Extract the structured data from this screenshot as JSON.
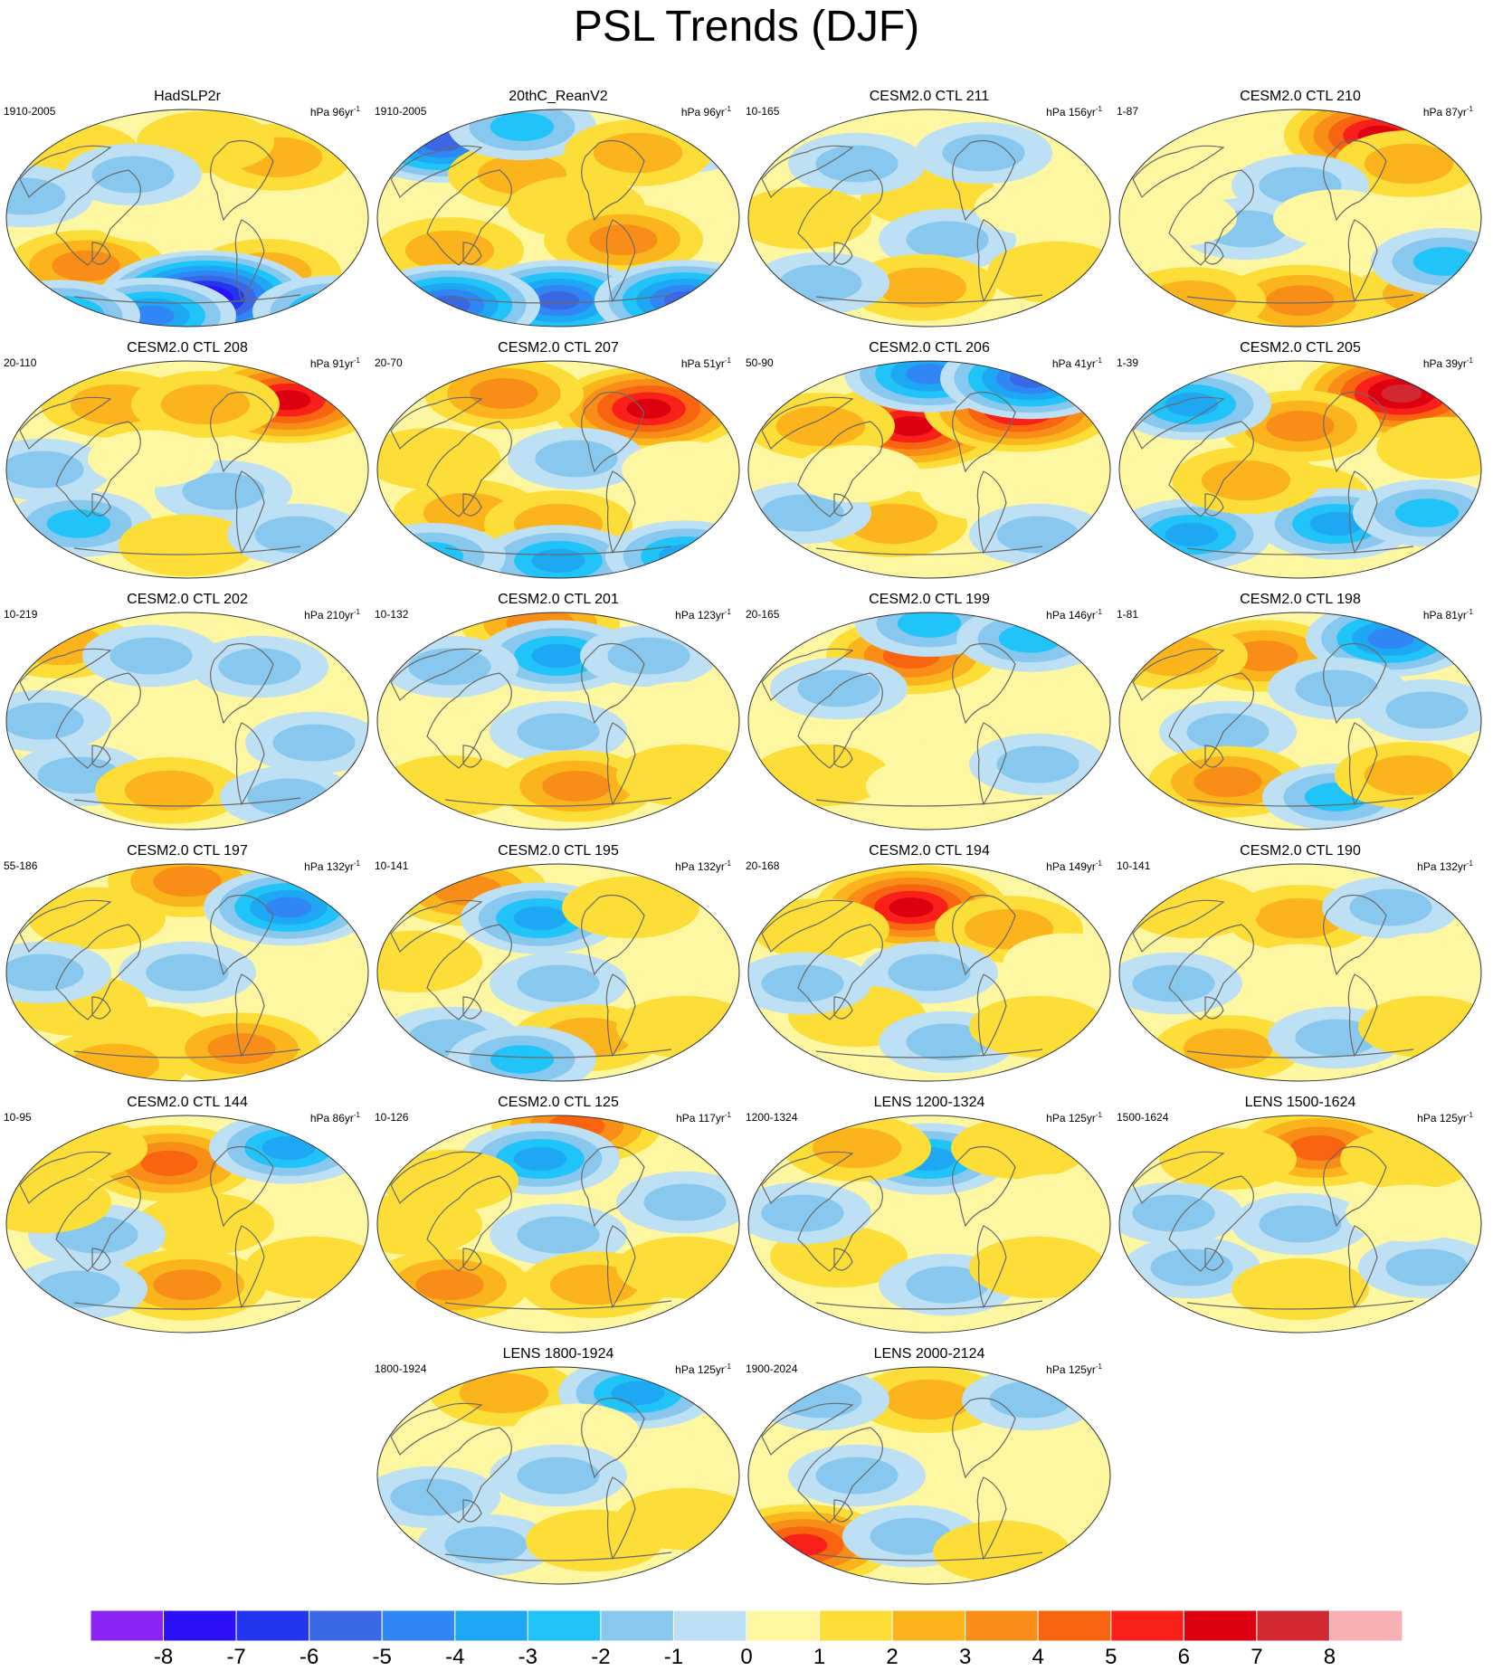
{
  "title": "PSL Trends (DJF)",
  "units": "hPa",
  "panels": [
    {
      "title": "HadSLP2r",
      "range": "1910-2005",
      "years": "96",
      "pattern": [
        [
          0.18,
          0.2,
          1
        ],
        [
          0.75,
          0.22,
          2
        ],
        [
          0.55,
          0.15,
          1
        ],
        [
          0.22,
          0.72,
          3
        ],
        [
          0.72,
          0.75,
          2
        ],
        [
          0.55,
          0.87,
          -8
        ],
        [
          0.4,
          0.95,
          -4
        ],
        [
          0.15,
          0.95,
          -3
        ],
        [
          0.9,
          0.93,
          -3
        ],
        [
          0.4,
          0.48,
          0
        ],
        [
          0.35,
          0.3,
          -1
        ],
        [
          0.05,
          0.4,
          -1
        ]
      ]
    },
    {
      "title": "20thC_ReanV2",
      "range": "1910-2005",
      "years": "96",
      "pattern": [
        [
          0.18,
          0.15,
          -5
        ],
        [
          0.4,
          0.3,
          2
        ],
        [
          0.55,
          0.45,
          1
        ],
        [
          0.2,
          0.65,
          2
        ],
        [
          0.68,
          0.6,
          3
        ],
        [
          0.5,
          0.88,
          -5
        ],
        [
          0.2,
          0.9,
          -5
        ],
        [
          0.85,
          0.88,
          -5
        ],
        [
          0.4,
          0.08,
          -2
        ],
        [
          0.85,
          0.15,
          -1
        ],
        [
          0.72,
          0.2,
          2
        ]
      ]
    },
    {
      "title": "CESM2.0 CTL 211",
      "range": "10-165",
      "years": "156",
      "pattern": [
        [
          0.5,
          0.4,
          1
        ],
        [
          0.3,
          0.25,
          -1
        ],
        [
          0.65,
          0.2,
          -1
        ],
        [
          0.55,
          0.6,
          -1
        ],
        [
          0.48,
          0.82,
          2
        ],
        [
          0.2,
          0.8,
          -1
        ],
        [
          0.85,
          0.75,
          1
        ],
        [
          0.15,
          0.5,
          1
        ],
        [
          0.8,
          0.45,
          0
        ]
      ]
    },
    {
      "title": "CESM2.0 CTL 210",
      "range": "1-87",
      "years": "87",
      "pattern": [
        [
          0.72,
          0.12,
          6
        ],
        [
          0.8,
          0.25,
          2
        ],
        [
          0.5,
          0.35,
          -1
        ],
        [
          0.35,
          0.55,
          -1
        ],
        [
          0.5,
          0.88,
          3
        ],
        [
          0.2,
          0.88,
          2
        ],
        [
          0.85,
          0.85,
          2
        ],
        [
          0.9,
          0.7,
          -2
        ],
        [
          0.15,
          0.5,
          0
        ],
        [
          0.6,
          0.5,
          0
        ]
      ]
    },
    {
      "title": "CESM2.0 CTL 208",
      "range": "20-110",
      "years": "91",
      "pattern": [
        [
          0.78,
          0.18,
          6
        ],
        [
          0.3,
          0.2,
          2
        ],
        [
          0.55,
          0.2,
          2
        ],
        [
          0.6,
          0.6,
          -1
        ],
        [
          0.2,
          0.75,
          -2
        ],
        [
          0.5,
          0.85,
          1
        ],
        [
          0.8,
          0.8,
          -1
        ],
        [
          0.1,
          0.5,
          -1
        ],
        [
          0.4,
          0.45,
          0
        ]
      ]
    },
    {
      "title": "CESM2.0 CTL 207",
      "range": "20-70",
      "years": "51",
      "pattern": [
        [
          0.75,
          0.22,
          6
        ],
        [
          0.35,
          0.15,
          3
        ],
        [
          0.55,
          0.45,
          -1
        ],
        [
          0.25,
          0.7,
          2
        ],
        [
          0.5,
          0.75,
          2
        ],
        [
          0.5,
          0.92,
          -3
        ],
        [
          0.85,
          0.9,
          -3
        ],
        [
          0.15,
          0.9,
          -2
        ],
        [
          0.15,
          0.45,
          1
        ],
        [
          0.85,
          0.5,
          0
        ]
      ]
    },
    {
      "title": "CESM2.0 CTL 206",
      "range": "50-90",
      "years": "41",
      "pattern": [
        [
          0.45,
          0.3,
          6
        ],
        [
          0.75,
          0.22,
          6
        ],
        [
          0.5,
          0.06,
          -4
        ],
        [
          0.78,
          0.08,
          -5
        ],
        [
          0.2,
          0.3,
          2
        ],
        [
          0.4,
          0.75,
          2
        ],
        [
          0.15,
          0.7,
          -1
        ],
        [
          0.65,
          0.6,
          0
        ],
        [
          0.8,
          0.8,
          -1
        ],
        [
          0.3,
          0.52,
          0
        ]
      ]
    },
    {
      "title": "CESM2.0 CTL 205",
      "range": "1-39",
      "years": "39",
      "pattern": [
        [
          0.78,
          0.15,
          7
        ],
        [
          0.5,
          0.3,
          3
        ],
        [
          0.2,
          0.2,
          -3
        ],
        [
          0.5,
          0.62,
          1
        ],
        [
          0.2,
          0.8,
          -3
        ],
        [
          0.6,
          0.75,
          -3
        ],
        [
          0.85,
          0.7,
          -2
        ],
        [
          0.35,
          0.55,
          2
        ],
        [
          0.9,
          0.4,
          1
        ]
      ]
    },
    {
      "title": "CESM2.0 CTL 202",
      "range": "10-219",
      "years": "210",
      "pattern": [
        [
          0.15,
          0.15,
          2
        ],
        [
          0.4,
          0.2,
          -1
        ],
        [
          0.7,
          0.25,
          -1
        ],
        [
          0.5,
          0.55,
          0
        ],
        [
          0.2,
          0.75,
          -1
        ],
        [
          0.45,
          0.82,
          2
        ],
        [
          0.78,
          0.85,
          -1
        ],
        [
          0.85,
          0.6,
          -1
        ],
        [
          0.1,
          0.5,
          -1
        ]
      ]
    },
    {
      "title": "CESM2.0 CTL 201",
      "range": "10-132",
      "years": "123",
      "pattern": [
        [
          0.45,
          0.05,
          3
        ],
        [
          0.5,
          0.2,
          -3
        ],
        [
          0.2,
          0.25,
          -1
        ],
        [
          0.75,
          0.2,
          -1
        ],
        [
          0.5,
          0.55,
          -1
        ],
        [
          0.55,
          0.8,
          3
        ],
        [
          0.2,
          0.8,
          1
        ],
        [
          0.85,
          0.75,
          1
        ],
        [
          0.85,
          0.45,
          0
        ]
      ]
    },
    {
      "title": "CESM2.0 CTL 199",
      "range": "20-165",
      "years": "146",
      "pattern": [
        [
          0.45,
          0.2,
          4
        ],
        [
          0.5,
          0.05,
          -2
        ],
        [
          0.78,
          0.12,
          -2
        ],
        [
          0.25,
          0.35,
          -1
        ],
        [
          0.6,
          0.5,
          0
        ],
        [
          0.2,
          0.75,
          1
        ],
        [
          0.5,
          0.8,
          0
        ],
        [
          0.8,
          0.7,
          -1
        ],
        [
          0.9,
          0.4,
          0
        ]
      ]
    },
    {
      "title": "CESM2.0 CTL 198",
      "range": "1-81",
      "years": "81",
      "pattern": [
        [
          0.4,
          0.2,
          3
        ],
        [
          0.75,
          0.12,
          -4
        ],
        [
          0.15,
          0.2,
          2
        ],
        [
          0.6,
          0.35,
          -1
        ],
        [
          0.3,
          0.55,
          -1
        ],
        [
          0.3,
          0.78,
          3
        ],
        [
          0.6,
          0.85,
          -2
        ],
        [
          0.8,
          0.75,
          2
        ],
        [
          0.85,
          0.45,
          -1
        ]
      ]
    },
    {
      "title": "CESM2.0 CTL 197",
      "range": "55-186",
      "years": "132",
      "pattern": [
        [
          0.5,
          0.08,
          3
        ],
        [
          0.78,
          0.2,
          -4
        ],
        [
          0.25,
          0.25,
          1
        ],
        [
          0.5,
          0.5,
          -1
        ],
        [
          0.2,
          0.65,
          1
        ],
        [
          0.4,
          0.8,
          1
        ],
        [
          0.65,
          0.85,
          3
        ],
        [
          0.3,
          0.92,
          2
        ],
        [
          0.1,
          0.5,
          -1
        ]
      ]
    },
    {
      "title": "CESM2.0 CTL 195",
      "range": "10-141",
      "years": "132",
      "pattern": [
        [
          0.25,
          0.12,
          3
        ],
        [
          0.45,
          0.25,
          -3
        ],
        [
          0.7,
          0.2,
          1
        ],
        [
          0.5,
          0.55,
          -1
        ],
        [
          0.2,
          0.8,
          -1
        ],
        [
          0.58,
          0.8,
          2
        ],
        [
          0.85,
          0.75,
          1
        ],
        [
          0.1,
          0.45,
          1
        ],
        [
          0.4,
          0.9,
          -2
        ]
      ]
    },
    {
      "title": "CESM2.0 CTL 194",
      "range": "20-168",
      "years": "149",
      "pattern": [
        [
          0.45,
          0.2,
          6
        ],
        [
          0.72,
          0.3,
          2
        ],
        [
          0.2,
          0.3,
          1
        ],
        [
          0.5,
          0.5,
          -1
        ],
        [
          0.3,
          0.7,
          1
        ],
        [
          0.55,
          0.82,
          -1
        ],
        [
          0.8,
          0.75,
          1
        ],
        [
          0.15,
          0.55,
          -1
        ],
        [
          0.88,
          0.45,
          0
        ]
      ]
    },
    {
      "title": "CESM2.0 CTL 190",
      "range": "10-141",
      "years": "132",
      "pattern": [
        [
          0.5,
          0.25,
          2
        ],
        [
          0.2,
          0.2,
          1
        ],
        [
          0.75,
          0.2,
          -1
        ],
        [
          0.5,
          0.5,
          0
        ],
        [
          0.3,
          0.85,
          2
        ],
        [
          0.6,
          0.8,
          -1
        ],
        [
          0.85,
          0.75,
          1
        ],
        [
          0.15,
          0.55,
          -1
        ],
        [
          0.85,
          0.45,
          0
        ]
      ]
    },
    {
      "title": "CESM2.0 CTL 144",
      "range": "10-95",
      "years": "86",
      "pattern": [
        [
          0.45,
          0.22,
          4
        ],
        [
          0.78,
          0.15,
          -3
        ],
        [
          0.2,
          0.15,
          1
        ],
        [
          0.55,
          0.5,
          1
        ],
        [
          0.25,
          0.55,
          -1
        ],
        [
          0.5,
          0.78,
          3
        ],
        [
          0.85,
          0.7,
          1
        ],
        [
          0.2,
          0.8,
          -1
        ],
        [
          0.1,
          0.4,
          1
        ]
      ]
    },
    {
      "title": "CESM2.0 CTL 125",
      "range": "10-126",
      "years": "117",
      "pattern": [
        [
          0.55,
          0.05,
          4
        ],
        [
          0.45,
          0.2,
          -3
        ],
        [
          0.2,
          0.3,
          1
        ],
        [
          0.5,
          0.55,
          -1
        ],
        [
          0.2,
          0.78,
          3
        ],
        [
          0.6,
          0.78,
          2
        ],
        [
          0.85,
          0.7,
          1
        ],
        [
          0.1,
          0.5,
          1
        ],
        [
          0.85,
          0.4,
          -1
        ]
      ]
    },
    {
      "title": "LENS 1200-1324",
      "range": "1200-1324",
      "years": "125",
      "pattern": [
        [
          0.5,
          0.2,
          -3
        ],
        [
          0.3,
          0.15,
          2
        ],
        [
          0.75,
          0.15,
          1
        ],
        [
          0.5,
          0.5,
          0
        ],
        [
          0.25,
          0.65,
          1
        ],
        [
          0.55,
          0.78,
          -1
        ],
        [
          0.8,
          0.7,
          1
        ],
        [
          0.15,
          0.45,
          -1
        ],
        [
          0.85,
          0.4,
          0
        ]
      ]
    },
    {
      "title": "LENS 1500-1624",
      "range": "1500-1624",
      "years": "125",
      "pattern": [
        [
          0.55,
          0.15,
          4
        ],
        [
          0.3,
          0.2,
          1
        ],
        [
          0.8,
          0.2,
          1
        ],
        [
          0.5,
          0.5,
          -1
        ],
        [
          0.2,
          0.7,
          -1
        ],
        [
          0.5,
          0.8,
          1
        ],
        [
          0.85,
          0.7,
          -1
        ],
        [
          0.15,
          0.45,
          -1
        ],
        [
          0.8,
          0.45,
          0
        ]
      ]
    },
    {
      "title": "LENS 1800-1924",
      "range": "1800-1924",
      "years": "125",
      "pattern": [
        [
          0.35,
          0.12,
          2
        ],
        [
          0.72,
          0.12,
          -3
        ],
        [
          0.55,
          0.3,
          0
        ],
        [
          0.5,
          0.5,
          -1
        ],
        [
          0.15,
          0.6,
          -1
        ],
        [
          0.3,
          0.82,
          -1
        ],
        [
          0.6,
          0.8,
          1
        ],
        [
          0.85,
          0.7,
          1
        ],
        [
          0.85,
          0.4,
          0
        ]
      ]
    },
    {
      "title": "LENS 2000-2124",
      "range": "1900-2024",
      "years": "125",
      "pattern": [
        [
          0.5,
          0.15,
          2
        ],
        [
          0.2,
          0.15,
          -1
        ],
        [
          0.78,
          0.15,
          -1
        ],
        [
          0.5,
          0.45,
          0
        ],
        [
          0.15,
          0.82,
          5
        ],
        [
          0.45,
          0.78,
          -1
        ],
        [
          0.7,
          0.85,
          1
        ],
        [
          0.85,
          0.6,
          0
        ],
        [
          0.3,
          0.5,
          -1
        ]
      ]
    }
  ],
  "colorbar": {
    "colors": [
      "#8b24f4",
      "#2b10f8",
      "#2236f0",
      "#3a68e4",
      "#2f86f4",
      "#1ea8f4",
      "#20c4f8",
      "#88c8ee",
      "#bee0f4",
      "#fdf7a2",
      "#fdde38",
      "#fbb41c",
      "#f88e18",
      "#f86410",
      "#f82018",
      "#dc0010",
      "#d22830",
      "#f8b0b4"
    ],
    "labels": [
      "-8",
      "-7",
      "-6",
      "-5",
      "-4",
      "-3",
      "-2",
      "-1",
      "0",
      "1",
      "2",
      "3",
      "4",
      "5",
      "6",
      "7",
      "8"
    ]
  }
}
